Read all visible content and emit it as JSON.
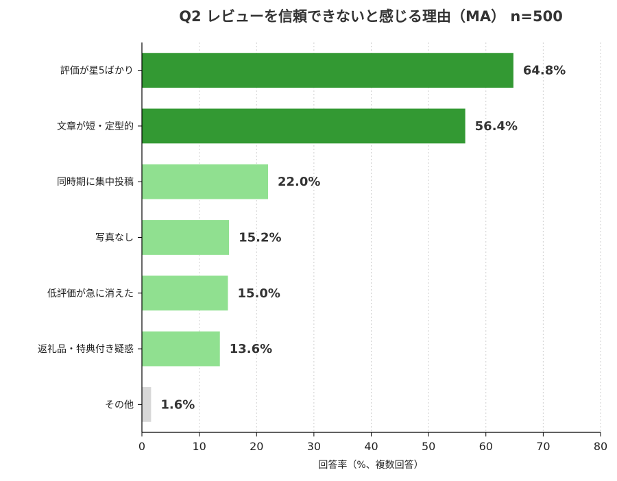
{
  "chart_data": {
    "type": "bar",
    "orientation": "horizontal",
    "title": "Q2 レビューを信頼できないと感じる理由（MA） n=500",
    "xlabel": "回答率（%、複数回答）",
    "ylabel": "",
    "xlim": [
      0,
      80
    ],
    "xticks": [
      0,
      10,
      20,
      30,
      40,
      50,
      60,
      70,
      80
    ],
    "grid": "vertical dotted",
    "categories": [
      "評価が星5ばかり",
      "文章が短・定型的",
      "同時期に集中投稿",
      "写真なし",
      "低評価が急に消えた",
      "返礼品・特典付き疑惑",
      "その他"
    ],
    "values": [
      64.8,
      56.4,
      22.0,
      15.2,
      15.0,
      13.6,
      1.6
    ],
    "value_labels": [
      "64.8%",
      "56.4%",
      "22.0%",
      "15.2%",
      "15.0%",
      "13.6%",
      "1.6%"
    ],
    "colors": [
      "#339933",
      "#339933",
      "#90e090",
      "#90e090",
      "#90e090",
      "#90e090",
      "#d8d8d8"
    ]
  }
}
